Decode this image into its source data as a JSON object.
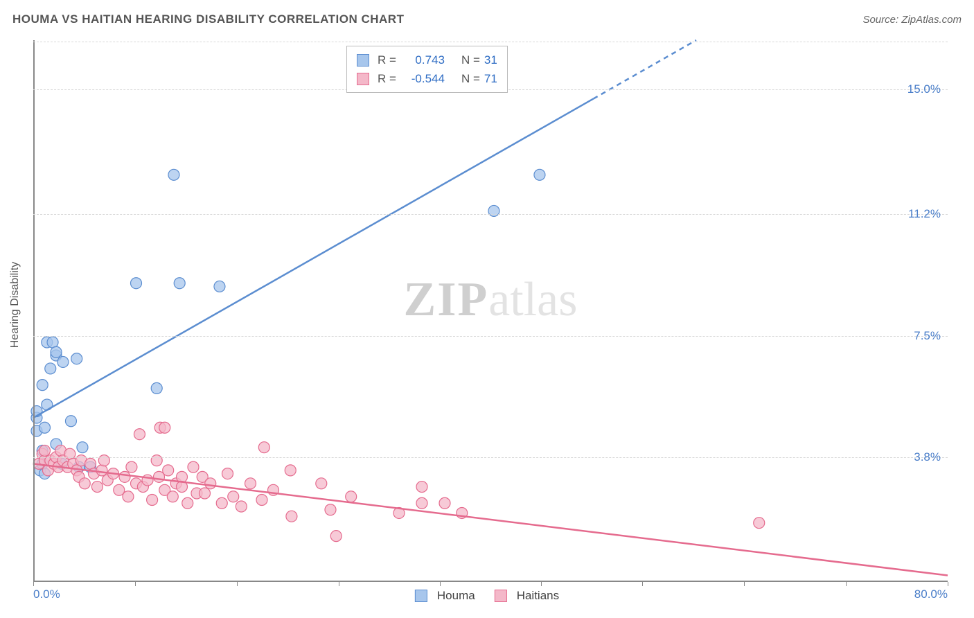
{
  "title": "HOUMA VS HAITIAN HEARING DISABILITY CORRELATION CHART",
  "source": "Source: ZipAtlas.com",
  "watermark": {
    "bold": "ZIP",
    "light": "atlas"
  },
  "y_axis_label": "Hearing Disability",
  "axes": {
    "xlim": [
      0,
      80
    ],
    "ylim": [
      0,
      16.5
    ],
    "x_labels": [
      {
        "text": "0.0%",
        "at": 0,
        "align": "left"
      },
      {
        "text": "80.0%",
        "at": 80,
        "align": "right"
      }
    ],
    "y_gridlines": [
      {
        "text": "3.8%",
        "at": 3.8
      },
      {
        "text": "7.5%",
        "at": 7.5
      },
      {
        "text": "11.2%",
        "at": 11.2
      },
      {
        "text": "15.0%",
        "at": 15.0
      }
    ],
    "x_ticks": [
      0,
      8.9,
      17.8,
      26.7,
      35.6,
      44.4,
      53.3,
      62.2,
      71.1,
      80
    ],
    "grid_color": "#d8d8d8",
    "axis_color": "#888",
    "label_color": "#4a7ec9"
  },
  "series": [
    {
      "name": "Houma",
      "color_fill": "#a7c6ec",
      "color_stroke": "#5b8dd0",
      "marker_radius": 8,
      "points": [
        [
          0.3,
          4.6
        ],
        [
          0.3,
          5.0
        ],
        [
          0.3,
          5.2
        ],
        [
          0.6,
          3.4
        ],
        [
          0.8,
          3.6
        ],
        [
          0.8,
          4.0
        ],
        [
          0.8,
          6.0
        ],
        [
          1.0,
          3.3
        ],
        [
          1.0,
          4.7
        ],
        [
          1.2,
          7.3
        ],
        [
          1.2,
          5.4
        ],
        [
          1.5,
          6.5
        ],
        [
          1.7,
          7.3
        ],
        [
          2.0,
          4.2
        ],
        [
          2.0,
          6.9
        ],
        [
          2.0,
          7.0
        ],
        [
          2.5,
          3.6
        ],
        [
          2.6,
          6.7
        ],
        [
          3.3,
          4.9
        ],
        [
          3.8,
          6.8
        ],
        [
          4.3,
          4.1
        ],
        [
          4.0,
          3.5
        ],
        [
          5.0,
          3.5
        ],
        [
          9.0,
          9.1
        ],
        [
          10.8,
          5.9
        ],
        [
          12.3,
          12.4
        ],
        [
          12.8,
          9.1
        ],
        [
          16.3,
          9.0
        ],
        [
          40.3,
          11.3
        ],
        [
          44.3,
          12.4
        ]
      ],
      "regression": {
        "x1": 0,
        "y1": 5.0,
        "x2": 58,
        "y2": 16.5,
        "width": 2.5,
        "dash_from_x": 49
      }
    },
    {
      "name": "Haitians",
      "color_fill": "#f4b8c9",
      "color_stroke": "#e56b8e",
      "marker_radius": 8,
      "points": [
        [
          0.5,
          3.6
        ],
        [
          0.8,
          3.9
        ],
        [
          1.0,
          3.7
        ],
        [
          1.0,
          4.0
        ],
        [
          1.3,
          3.4
        ],
        [
          1.5,
          3.7
        ],
        [
          1.8,
          3.6
        ],
        [
          2.0,
          3.8
        ],
        [
          2.2,
          3.5
        ],
        [
          2.4,
          4.0
        ],
        [
          2.6,
          3.7
        ],
        [
          3.0,
          3.5
        ],
        [
          3.2,
          3.9
        ],
        [
          3.5,
          3.6
        ],
        [
          3.8,
          3.4
        ],
        [
          4.0,
          3.2
        ],
        [
          4.2,
          3.7
        ],
        [
          4.5,
          3.0
        ],
        [
          5.0,
          3.6
        ],
        [
          5.3,
          3.3
        ],
        [
          5.6,
          2.9
        ],
        [
          6.0,
          3.4
        ],
        [
          6.2,
          3.7
        ],
        [
          6.5,
          3.1
        ],
        [
          7.0,
          3.3
        ],
        [
          7.5,
          2.8
        ],
        [
          8.0,
          3.2
        ],
        [
          8.3,
          2.6
        ],
        [
          8.6,
          3.5
        ],
        [
          9.0,
          3.0
        ],
        [
          9.3,
          4.5
        ],
        [
          9.6,
          2.9
        ],
        [
          10.0,
          3.1
        ],
        [
          10.4,
          2.5
        ],
        [
          10.8,
          3.7
        ],
        [
          11.0,
          3.2
        ],
        [
          11.1,
          4.7
        ],
        [
          11.5,
          2.8
        ],
        [
          11.5,
          4.7
        ],
        [
          11.8,
          3.4
        ],
        [
          12.2,
          2.6
        ],
        [
          12.5,
          3.0
        ],
        [
          13.0,
          3.2
        ],
        [
          13.0,
          2.9
        ],
        [
          13.5,
          2.4
        ],
        [
          14.0,
          3.5
        ],
        [
          14.3,
          2.7
        ],
        [
          14.8,
          3.2
        ],
        [
          15.0,
          2.7
        ],
        [
          15.5,
          3.0
        ],
        [
          16.5,
          2.4
        ],
        [
          17.0,
          3.3
        ],
        [
          17.5,
          2.6
        ],
        [
          18.2,
          2.3
        ],
        [
          19.0,
          3.0
        ],
        [
          20.0,
          2.5
        ],
        [
          20.2,
          4.1
        ],
        [
          21.0,
          2.8
        ],
        [
          22.5,
          3.4
        ],
        [
          22.6,
          2.0
        ],
        [
          25.2,
          3.0
        ],
        [
          26.0,
          2.2
        ],
        [
          26.5,
          1.4
        ],
        [
          27.8,
          2.6
        ],
        [
          32.0,
          2.1
        ],
        [
          34.0,
          2.4
        ],
        [
          34.0,
          2.9
        ],
        [
          36.0,
          2.4
        ],
        [
          37.5,
          2.1
        ],
        [
          63.5,
          1.8
        ]
      ],
      "regression": {
        "x1": 0,
        "y1": 3.6,
        "x2": 80,
        "y2": 0.2,
        "width": 2.5
      }
    }
  ],
  "stats_legend": {
    "rows": [
      {
        "swatch_fill": "#a7c6ec",
        "swatch_stroke": "#5b8dd0",
        "r": "0.743",
        "n": "31"
      },
      {
        "swatch_fill": "#f4b8c9",
        "swatch_stroke": "#e56b8e",
        "r": "-0.544",
        "n": "71"
      }
    ],
    "r_label": "R =",
    "n_label": "N ="
  },
  "bottom_legend": [
    {
      "swatch_fill": "#a7c6ec",
      "swatch_stroke": "#5b8dd0",
      "label": "Houma"
    },
    {
      "swatch_fill": "#f4b8c9",
      "swatch_stroke": "#e56b8e",
      "label": "Haitians"
    }
  ]
}
